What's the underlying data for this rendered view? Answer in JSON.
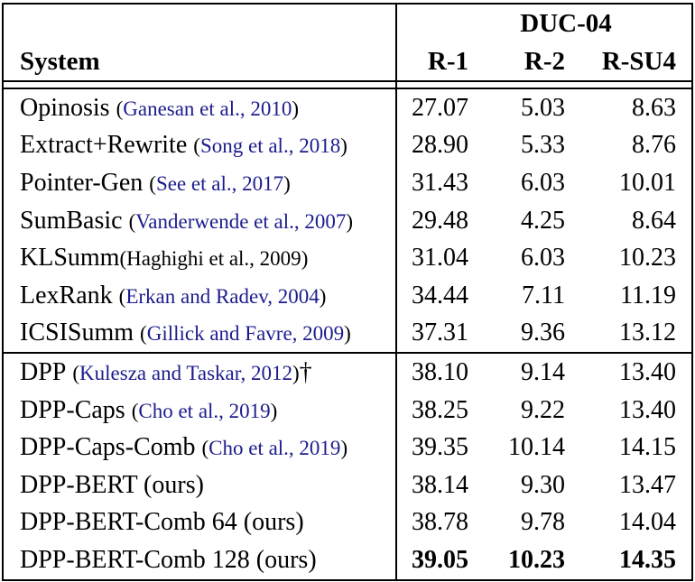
{
  "colors": {
    "text": "#000000",
    "citation_link": "#1c1c8e",
    "border": "#000000",
    "background": "#ffffff"
  },
  "table": {
    "dataset_header": "DUC-04",
    "columns": {
      "system": "System",
      "r1": "R-1",
      "r2": "R-2",
      "rsu4": "R-SU4"
    },
    "rows": [
      {
        "system": "Opinosis",
        "cite": "Ganesan et al., 2010",
        "r1": "27.07",
        "r2": "5.03",
        "rsu4": "8.63"
      },
      {
        "system": "Extract+Rewrite",
        "cite": "Song et al., 2018",
        "r1": "28.90",
        "r2": "5.33",
        "rsu4": "8.76"
      },
      {
        "system": "Pointer-Gen",
        "cite": "See et al., 2017",
        "r1": "31.43",
        "r2": "6.03",
        "rsu4": "10.01"
      },
      {
        "system": "SumBasic",
        "cite": "Vanderwende et al., 2007",
        "r1": "29.48",
        "r2": "4.25",
        "rsu4": "8.64"
      },
      {
        "system": "KLSumm",
        "cite": "Haghighi et al., 2009",
        "r1": "31.04",
        "r2": "6.03",
        "rsu4": "10.23"
      },
      {
        "system": "LexRank",
        "cite": "Erkan and Radev, 2004",
        "r1": "34.44",
        "r2": "7.11",
        "rsu4": "11.19"
      },
      {
        "system": "ICSISumm",
        "cite": "Gillick and Favre, 2009",
        "r1": "37.31",
        "r2": "9.36",
        "rsu4": "13.12"
      },
      {
        "system": "DPP",
        "cite": "Kulesza and Taskar, 2012",
        "suffix": "†",
        "r1": "38.10",
        "r2": "9.14",
        "rsu4": "13.40"
      },
      {
        "system": "DPP-Caps",
        "cite": "Cho et al., 2019",
        "r1": "38.25",
        "r2": "9.22",
        "rsu4": "13.40"
      },
      {
        "system": "DPP-Caps-Comb",
        "cite": "Cho et al., 2019",
        "r1": "39.35",
        "r2": "10.14",
        "rsu4": "14.15"
      },
      {
        "system": "DPP-BERT (ours)",
        "r1": "38.14",
        "r2": "9.30",
        "rsu4": "13.47"
      },
      {
        "system": "DPP-BERT-Comb 64 (ours)",
        "r1": "38.78",
        "r2": "9.78",
        "rsu4": "14.04"
      },
      {
        "system": "DPP-BERT-Comb 128 (ours)",
        "r1": "39.05",
        "r2": "10.23",
        "rsu4": "14.35"
      }
    ]
  }
}
